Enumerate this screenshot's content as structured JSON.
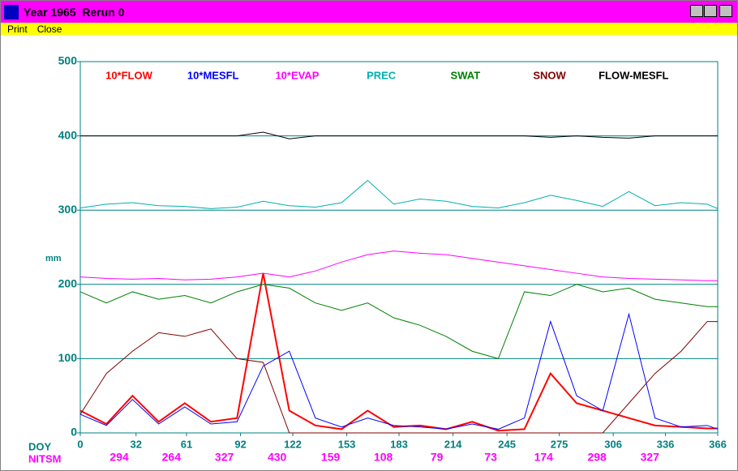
{
  "window": {
    "title": "Year 1965  Rerun 0",
    "menu": [
      "Print",
      "Close"
    ]
  },
  "chart_data": {
    "type": "line",
    "y_label": "mm",
    "x_label": "DOY",
    "nitsm_label": "NITSM",
    "nitsm": [
      294,
      264,
      327,
      430,
      159,
      108,
      79,
      73,
      174,
      298,
      327
    ],
    "xlim": [
      0,
      366
    ],
    "xticks": [
      0,
      32,
      61,
      92,
      122,
      153,
      183,
      214,
      245,
      275,
      306,
      336,
      366
    ],
    "ylim": [
      0,
      500
    ],
    "yticks": [
      0,
      100,
      200,
      300,
      400,
      500
    ],
    "grid": true,
    "x": [
      0,
      15,
      30,
      45,
      60,
      75,
      90,
      105,
      120,
      135,
      150,
      165,
      180,
      195,
      210,
      225,
      240,
      255,
      270,
      285,
      300,
      315,
      330,
      345,
      360,
      366
    ],
    "series": [
      {
        "name": "10*FLOW",
        "color": "#ff0000",
        "values": [
          30,
          12,
          50,
          15,
          40,
          15,
          20,
          215,
          30,
          10,
          5,
          30,
          8,
          10,
          5,
          15,
          3,
          5,
          80,
          40,
          30,
          20,
          10,
          8,
          6,
          6
        ]
      },
      {
        "name": "10*MESFL",
        "color": "#0000ff",
        "values": [
          25,
          10,
          45,
          12,
          35,
          12,
          15,
          90,
          110,
          20,
          8,
          20,
          10,
          8,
          5,
          12,
          5,
          20,
          150,
          50,
          30,
          160,
          20,
          8,
          10,
          5
        ]
      },
      {
        "name": "10*EVAP",
        "color": "#ff00ff",
        "values": [
          210,
          208,
          207,
          208,
          206,
          207,
          210,
          215,
          210,
          218,
          230,
          240,
          245,
          242,
          240,
          235,
          230,
          225,
          220,
          215,
          210,
          208,
          207,
          206,
          205,
          205
        ]
      },
      {
        "name": "PREC",
        "color": "#00b0b0",
        "values": [
          303,
          308,
          310,
          306,
          305,
          302,
          304,
          312,
          306,
          304,
          310,
          340,
          308,
          315,
          312,
          305,
          303,
          310,
          320,
          313,
          305,
          325,
          306,
          310,
          308,
          302
        ]
      },
      {
        "name": "SWAT",
        "color": "#008000",
        "values": [
          190,
          175,
          190,
          180,
          185,
          175,
          190,
          200,
          195,
          175,
          165,
          175,
          155,
          145,
          130,
          110,
          100,
          190,
          185,
          200,
          190,
          195,
          180,
          175,
          170,
          170
        ]
      },
      {
        "name": "SNOW",
        "color": "#800000",
        "values": [
          25,
          80,
          110,
          135,
          130,
          140,
          100,
          95,
          0,
          0,
          0,
          0,
          0,
          0,
          0,
          0,
          0,
          0,
          0,
          0,
          0,
          40,
          80,
          110,
          150,
          150
        ]
      },
      {
        "name": "FLOW-MESFL",
        "color": "#000000",
        "values": [
          400,
          400,
          400,
          400,
          400,
          400,
          400,
          405,
          396,
          400,
          400,
          400,
          400,
          400,
          400,
          400,
          400,
          400,
          398,
          400,
          398,
          397,
          400,
          400,
          400,
          400
        ]
      }
    ]
  }
}
